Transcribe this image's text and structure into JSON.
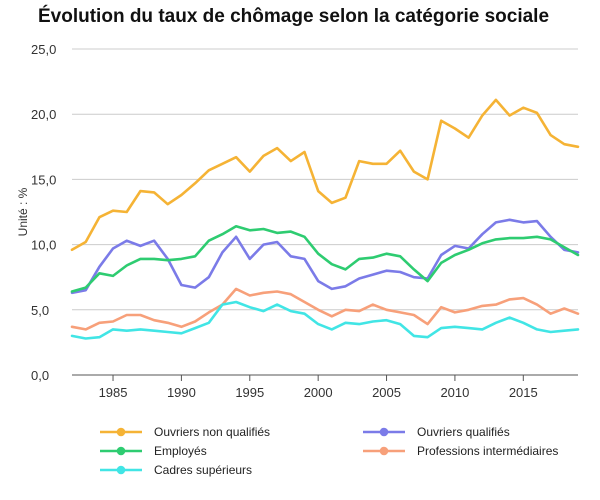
{
  "chart_data": {
    "type": "line",
    "title": "Évolution du taux de chômage selon la catégorie sociale",
    "ylabel": "Unité : %",
    "xlabel": "",
    "ylim": [
      0,
      25
    ],
    "yticks": [
      "0,0",
      "5,0",
      "10,0",
      "15,0",
      "20,0",
      "25,0"
    ],
    "ytick_values": [
      0,
      5,
      10,
      15,
      20,
      25
    ],
    "xlim": [
      1982,
      2019
    ],
    "xticks": [
      1985,
      1990,
      1995,
      2000,
      2005,
      2010,
      2015
    ],
    "grid": "horizontal",
    "legend_position": "bottom",
    "x": [
      1982,
      1983,
      1984,
      1985,
      1986,
      1987,
      1988,
      1989,
      1990,
      1991,
      1992,
      1993,
      1994,
      1995,
      1996,
      1997,
      1998,
      1999,
      2000,
      2001,
      2002,
      2003,
      2004,
      2005,
      2006,
      2007,
      2008,
      2009,
      2010,
      2011,
      2012,
      2013,
      2014,
      2015,
      2016,
      2017,
      2018,
      2019
    ],
    "series": [
      {
        "name": "Ouvriers non qualifiés",
        "color": "#F5B335",
        "values": [
          9.6,
          10.2,
          12.1,
          12.6,
          12.5,
          14.1,
          14.0,
          13.1,
          13.8,
          14.7,
          15.7,
          16.2,
          16.7,
          15.6,
          16.8,
          17.4,
          16.4,
          17.1,
          14.1,
          13.2,
          13.6,
          16.4,
          16.2,
          16.2,
          17.2,
          15.6,
          15.0,
          19.5,
          18.9,
          18.2,
          19.9,
          21.1,
          19.9,
          20.5,
          20.1,
          18.4,
          17.7,
          17.5
        ]
      },
      {
        "name": "Ouvriers qualifiés",
        "color": "#7B7BE8",
        "values": [
          6.3,
          6.5,
          8.3,
          9.7,
          10.3,
          9.9,
          10.3,
          8.9,
          6.9,
          6.7,
          7.5,
          9.4,
          10.6,
          8.9,
          10.0,
          10.2,
          9.1,
          8.9,
          7.2,
          6.6,
          6.8,
          7.4,
          7.7,
          8.0,
          7.9,
          7.5,
          7.4,
          9.2,
          9.9,
          9.7,
          10.8,
          11.7,
          11.9,
          11.7,
          11.8,
          10.6,
          9.6,
          9.4
        ]
      },
      {
        "name": "Employés",
        "color": "#2ECC71",
        "values": [
          6.4,
          6.7,
          7.8,
          7.6,
          8.4,
          8.9,
          8.9,
          8.8,
          8.9,
          9.1,
          10.3,
          10.8,
          11.4,
          11.1,
          11.2,
          10.9,
          11.0,
          10.6,
          9.3,
          8.5,
          8.1,
          8.9,
          9.0,
          9.3,
          9.1,
          8.1,
          7.2,
          8.6,
          9.2,
          9.6,
          10.1,
          10.4,
          10.5,
          10.5,
          10.6,
          10.4,
          9.8,
          9.2
        ]
      },
      {
        "name": "Professions intermédiaires",
        "color": "#F7A07A",
        "values": [
          3.7,
          3.5,
          4.0,
          4.1,
          4.6,
          4.6,
          4.2,
          4.0,
          3.7,
          4.1,
          4.8,
          5.4,
          6.6,
          6.1,
          6.3,
          6.4,
          6.2,
          5.6,
          5.0,
          4.5,
          5.0,
          4.9,
          5.4,
          5.0,
          4.8,
          4.6,
          3.9,
          5.2,
          4.8,
          5.0,
          5.3,
          5.4,
          5.8,
          5.9,
          5.4,
          4.7,
          5.1,
          4.7
        ]
      },
      {
        "name": "Cadres supérieurs",
        "color": "#41E5E5",
        "values": [
          3.0,
          2.8,
          2.9,
          3.5,
          3.4,
          3.5,
          3.4,
          3.3,
          3.2,
          3.6,
          4.0,
          5.4,
          5.6,
          5.2,
          4.9,
          5.4,
          4.9,
          4.7,
          3.9,
          3.5,
          4.0,
          3.9,
          4.1,
          4.2,
          3.9,
          3.0,
          2.9,
          3.6,
          3.7,
          3.6,
          3.5,
          4.0,
          4.4,
          4.0,
          3.5,
          3.3,
          3.4,
          3.5
        ]
      }
    ]
  }
}
